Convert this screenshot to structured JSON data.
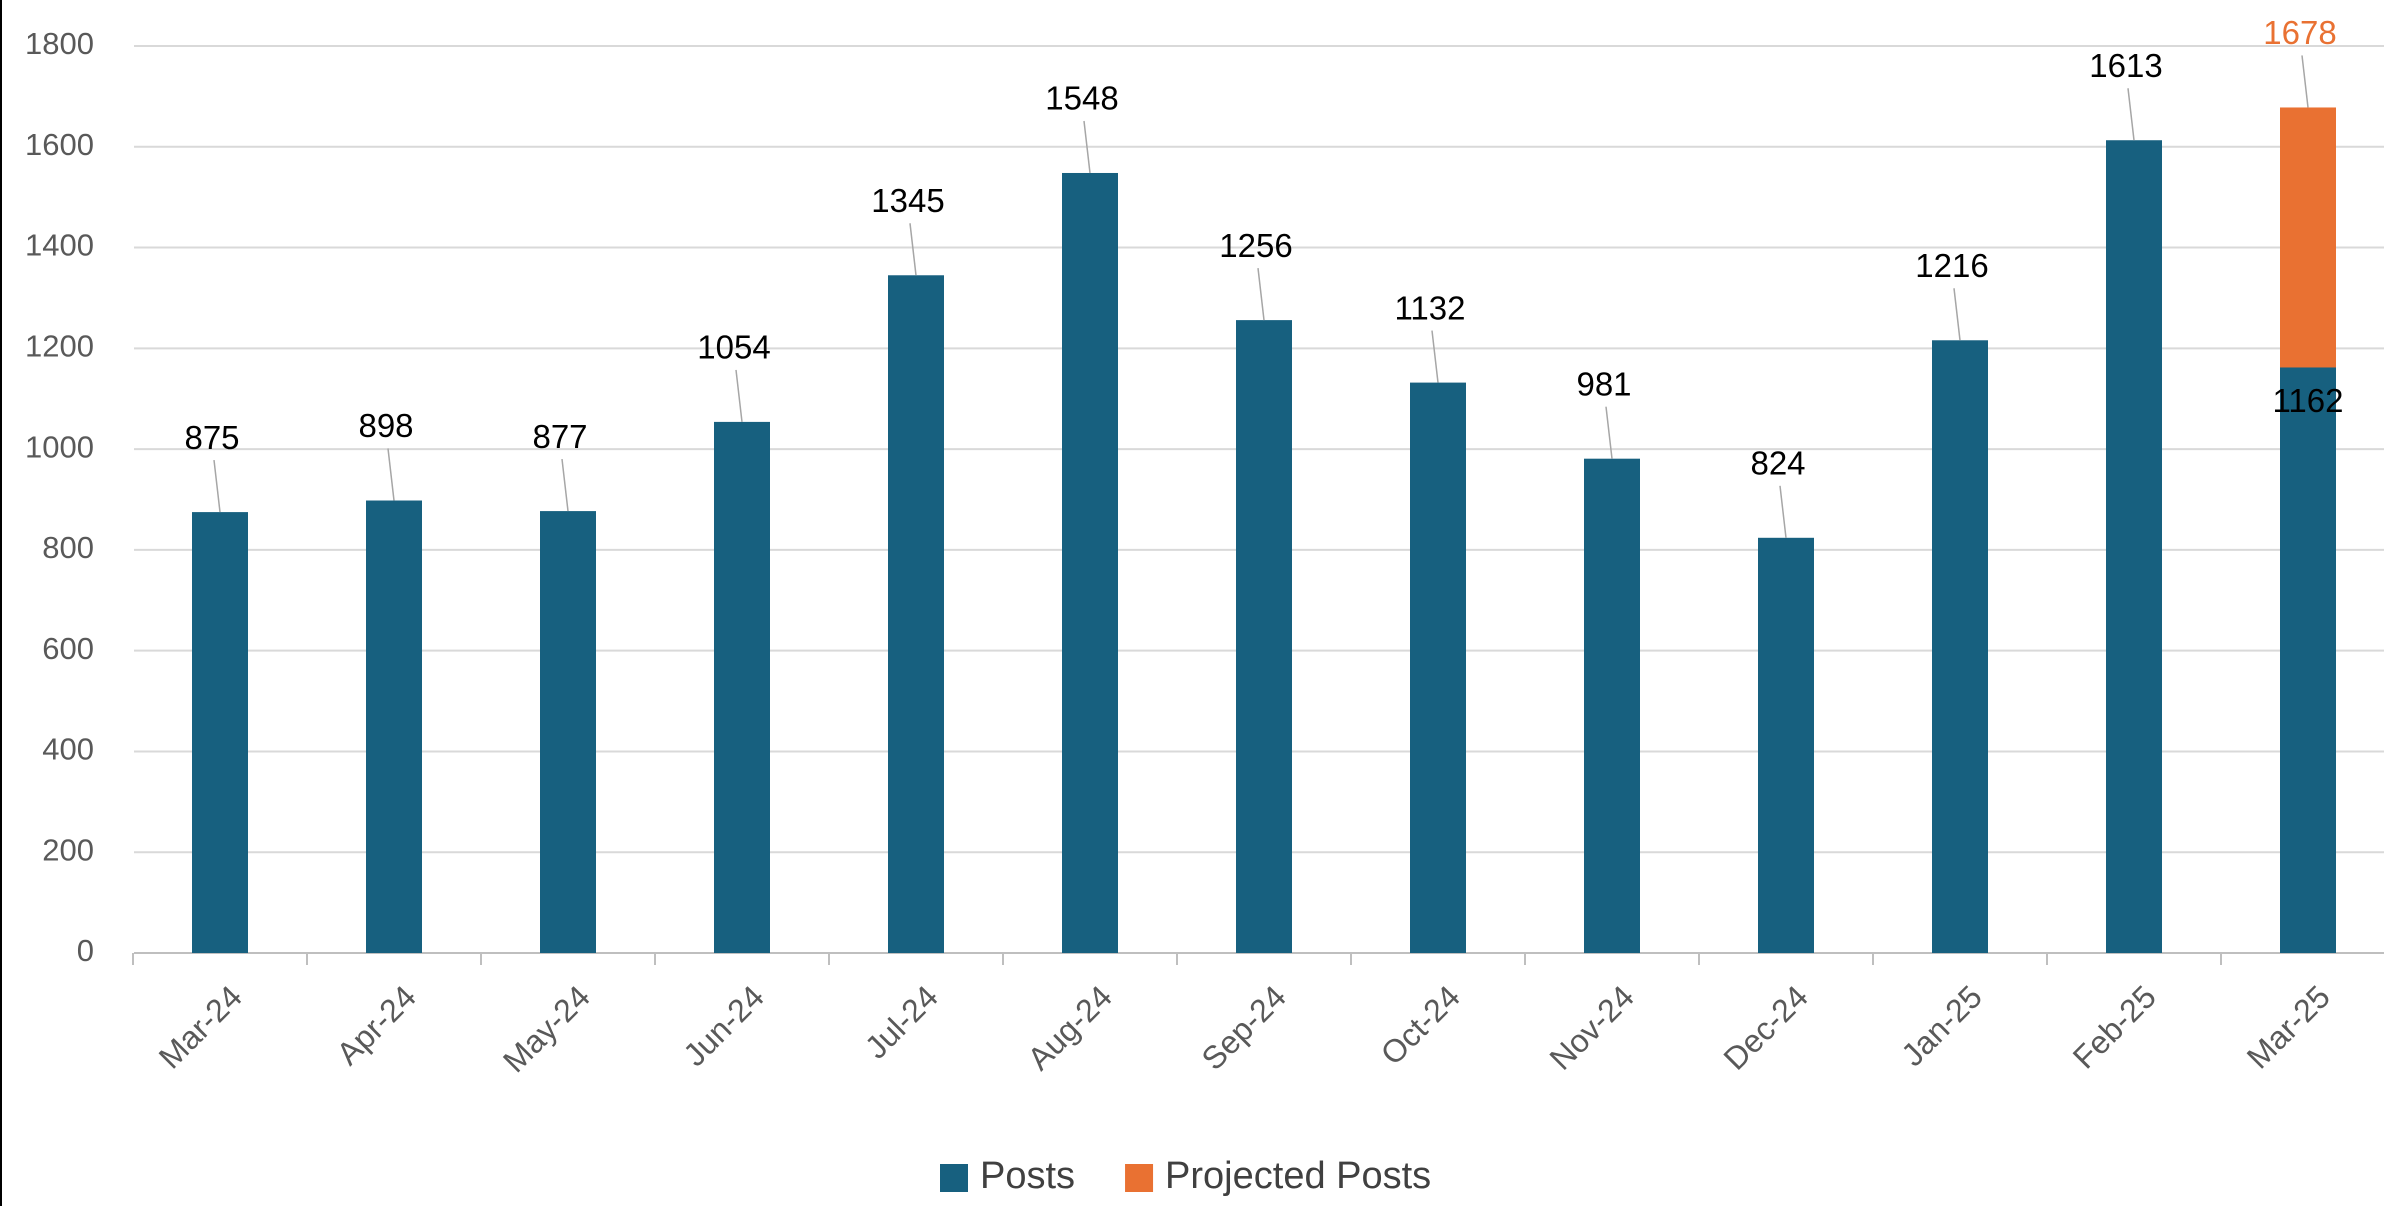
{
  "chart_data": {
    "type": "bar",
    "categories": [
      "Mar-24",
      "Apr-24",
      "May-24",
      "Jun-24",
      "Jul-24",
      "Aug-24",
      "Sep-24",
      "Oct-24",
      "Nov-24",
      "Dec-24",
      "Jan-25",
      "Feb-25",
      "Mar-25"
    ],
    "series": [
      {
        "name": "Posts",
        "color": "#17607f",
        "values": [
          875,
          898,
          877,
          1054,
          1345,
          1548,
          1256,
          1132,
          981,
          824,
          1216,
          1613,
          1162
        ]
      },
      {
        "name": "Projected Posts",
        "color": "#e97132",
        "values": [
          null,
          null,
          null,
          null,
          null,
          null,
          null,
          null,
          null,
          null,
          null,
          null,
          1678
        ]
      }
    ],
    "ylim": [
      0,
      1800
    ],
    "yticks": [
      0,
      200,
      400,
      600,
      800,
      1000,
      1200,
      1400,
      1600,
      1800
    ],
    "grid": true,
    "legend": "bottom"
  }
}
